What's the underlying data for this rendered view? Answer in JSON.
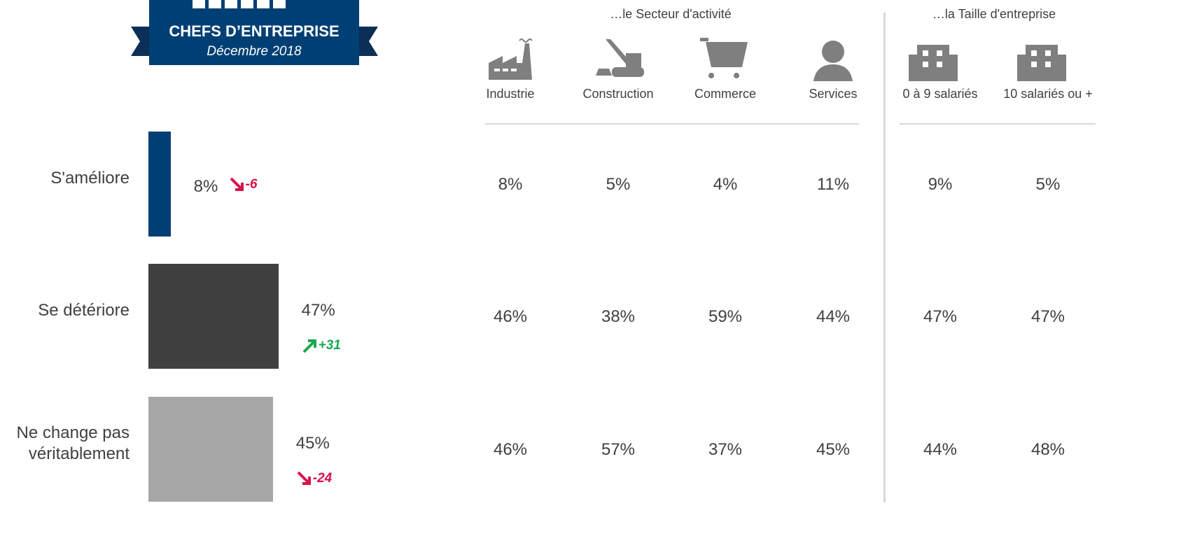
{
  "badge": {
    "title": "CHEFS D’ENTREPRISE",
    "subtitle": "Décembre 2018"
  },
  "chart_data": {
    "type": "bar",
    "orientation": "horizontal",
    "categories": [
      "S'améliore",
      "Se détériore",
      "Ne change pas véritablement"
    ],
    "values": [
      8,
      47,
      45
    ],
    "value_labels": [
      "8%",
      "47%",
      "45%"
    ],
    "colors": [
      "#003f74",
      "#404040",
      "#a6a6a6"
    ],
    "changes": [
      -6,
      31,
      -24
    ],
    "change_labels": [
      "-6",
      "+31",
      "-24"
    ]
  },
  "table": {
    "groups": [
      {
        "title": "…le Secteur d'activité",
        "columns": [
          "Industrie",
          "Construction",
          "Commerce",
          "Services"
        ]
      },
      {
        "title": "…la Taille d'entreprise",
        "columns": [
          "0 à 9 salariés",
          "10 salariés ou +"
        ]
      }
    ],
    "rows": [
      [
        "8%",
        "5%",
        "4%",
        "11%",
        "9%",
        "5%"
      ],
      [
        "46%",
        "38%",
        "59%",
        "44%",
        "47%",
        "47%"
      ],
      [
        "46%",
        "57%",
        "37%",
        "45%",
        "44%",
        "48%"
      ]
    ]
  }
}
